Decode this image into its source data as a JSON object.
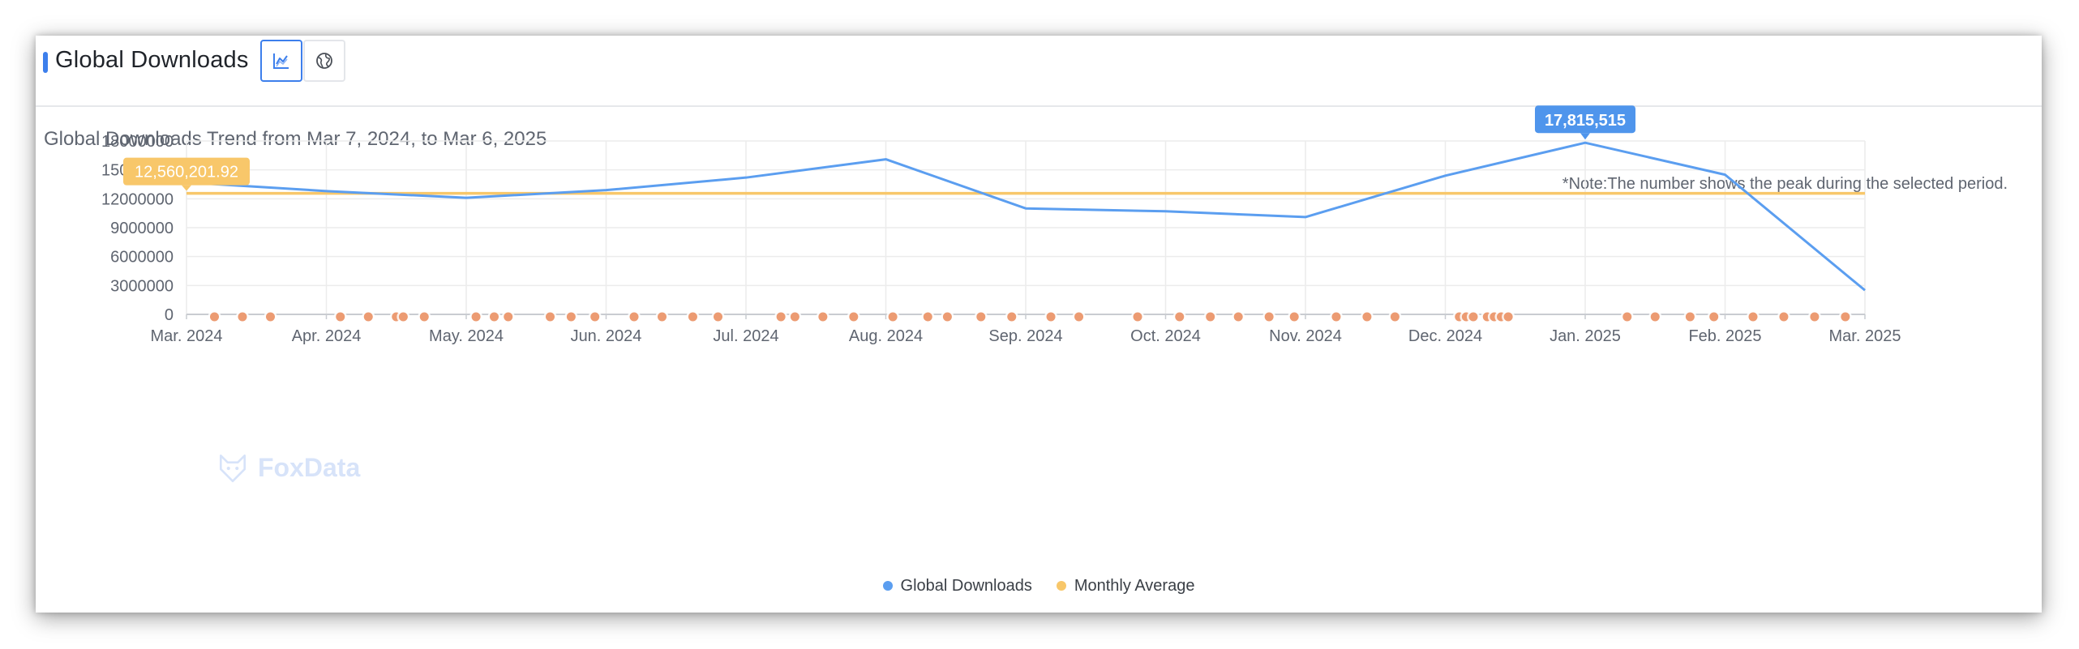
{
  "header": {
    "title": "Global Downloads",
    "tabs": [
      {
        "icon": "line-chart-icon",
        "active": true
      },
      {
        "icon": "globe-icon",
        "active": false
      }
    ]
  },
  "subtitle": "Global Downloads Trend from Mar 7, 2024, to Mar 6, 2025",
  "note": "*Note:The number shows the peak during the selected period.",
  "watermark": "FoxData",
  "colors": {
    "accent": "#3d7fec",
    "series_line": "#5b9ef0",
    "average_line": "#f8c76a",
    "event_marker": "#ec9b72"
  },
  "chart_data": {
    "type": "line",
    "x": [
      "Mar. 2024",
      "Apr. 2024",
      "May. 2024",
      "Jun. 2024",
      "Jul. 2024",
      "Aug. 2024",
      "Sep. 2024",
      "Oct. 2024",
      "Nov. 2024",
      "Dec. 2024",
      "Jan. 2025",
      "Feb. 2025",
      "Mar. 2025"
    ],
    "series": [
      {
        "name": "Global Downloads",
        "color": "#5b9ef0",
        "values": [
          13700000,
          12800000,
          12100000,
          12900000,
          14200000,
          16100000,
          11000000,
          10700000,
          10100000,
          14400000,
          17815515,
          14500000,
          2500000
        ]
      }
    ],
    "average": {
      "name": "Monthly Average",
      "value": 12560201.92,
      "label": "12,560,201.92",
      "color": "#f8c76a"
    },
    "peak": {
      "label": "17,815,515",
      "value": 17815515,
      "x": "Jan. 2025"
    },
    "y_ticks": [
      "18000000",
      "15000000",
      "12000000",
      "9000000",
      "6000000",
      "3000000",
      "0"
    ],
    "ylim": [
      0,
      18000000
    ],
    "grid": true,
    "legend_position": "bottom-center",
    "event_markers_x": [
      0.2,
      0.4,
      0.6,
      1.1,
      1.3,
      1.5,
      1.55,
      1.7,
      2.07,
      2.2,
      2.3,
      2.6,
      2.75,
      2.92,
      3.2,
      3.4,
      3.62,
      3.8,
      4.25,
      4.35,
      4.55,
      4.77,
      5.05,
      5.3,
      5.44,
      5.68,
      5.9,
      6.18,
      6.38,
      6.8,
      7.1,
      7.32,
      7.52,
      7.74,
      7.92,
      8.22,
      8.44,
      8.64,
      9.1,
      9.15,
      9.2,
      9.3,
      9.35,
      9.4,
      9.45,
      10.3,
      10.5,
      10.75,
      10.92,
      11.2,
      11.42,
      11.64,
      11.86
    ]
  }
}
